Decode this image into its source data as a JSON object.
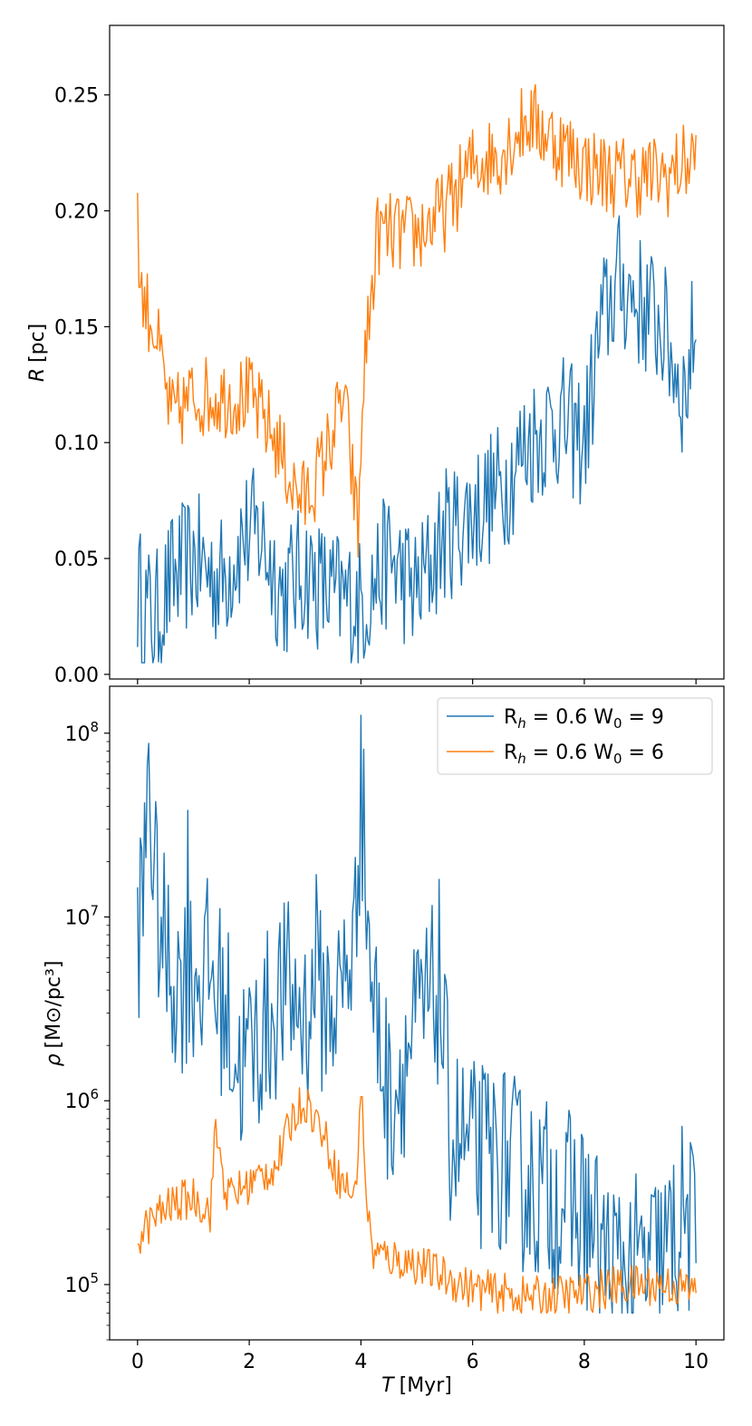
{
  "chart_data": [
    {
      "type": "line",
      "panel": "top",
      "title": "",
      "xlabel": "",
      "ylabel": "R [pc]",
      "ylabel_symbol": "R",
      "ylabel_unit": "[pc]",
      "xlim": [
        -0.5,
        10.5
      ],
      "ylim": [
        -0.002,
        0.28
      ],
      "yscale": "linear",
      "grid": false,
      "xticks": [
        0,
        2,
        4,
        6,
        8,
        10
      ],
      "yticks": [
        0.0,
        0.05,
        0.1,
        0.15,
        0.2,
        0.25
      ],
      "ytick_labels": [
        "0.00",
        "0.05",
        "0.10",
        "0.15",
        "0.20",
        "0.25"
      ],
      "series": [
        {
          "name": "R_h = 0.6 W_0 = 9",
          "color": "#1f77b4",
          "x": [
            0,
            0.3,
            0.6,
            1.0,
            1.5,
            1.9,
            2.2,
            2.6,
            3.0,
            3.4,
            4.0,
            4.5,
            5.0,
            5.5,
            6.0,
            6.5,
            7.0,
            7.5,
            8.0,
            8.3,
            8.6,
            9.0,
            9.4,
            9.8,
            10.0
          ],
          "values": [
            0.036,
            0.022,
            0.04,
            0.05,
            0.04,
            0.06,
            0.06,
            0.035,
            0.045,
            0.035,
            0.03,
            0.05,
            0.035,
            0.06,
            0.07,
            0.08,
            0.1,
            0.11,
            0.1,
            0.15,
            0.17,
            0.16,
            0.15,
            0.12,
            0.155
          ],
          "noise": 0.03
        },
        {
          "name": "R_h = 0.6 W_0 = 6",
          "color": "#ff7f0e",
          "x": [
            0,
            0.05,
            0.3,
            0.6,
            1.0,
            1.5,
            2.0,
            2.5,
            2.8,
            3.0,
            3.3,
            3.7,
            3.95,
            4.05,
            4.3,
            5.0,
            5.5,
            6.0,
            6.5,
            7.0,
            7.5,
            8.0,
            8.5,
            9.0,
            9.5,
            10.0
          ],
          "values": [
            0.204,
            0.165,
            0.15,
            0.11,
            0.12,
            0.12,
            0.12,
            0.1,
            0.08,
            0.075,
            0.09,
            0.12,
            0.06,
            0.13,
            0.19,
            0.19,
            0.2,
            0.22,
            0.225,
            0.24,
            0.23,
            0.22,
            0.215,
            0.215,
            0.215,
            0.224
          ],
          "noise": 0.018
        }
      ]
    },
    {
      "type": "line",
      "panel": "bottom",
      "title": "",
      "xlabel": "T [Myr]",
      "xlabel_symbol": "T",
      "xlabel_unit": "[Myr]",
      "ylabel": "ρ [M⊙/pc³]",
      "ylabel_symbol": "ρ",
      "ylabel_unit": "[M⊙/pc³]",
      "xlim": [
        -0.5,
        10.5
      ],
      "ylim": [
        50000,
        180000000
      ],
      "yscale": "log",
      "grid": false,
      "xticks": [
        0,
        2,
        4,
        6,
        8,
        10
      ],
      "xtick_labels": [
        "0",
        "2",
        "4",
        "6",
        "8",
        "10"
      ],
      "yticks": [
        100000,
        1000000,
        10000000,
        100000000
      ],
      "ytick_base": "10",
      "ytick_exponents": [
        "5",
        "6",
        "7",
        "8"
      ],
      "legend": {
        "location": "upper right",
        "entries": [
          "R_h = 0.6 W_0 = 9",
          "R_h = 0.6 W_0 = 6"
        ],
        "label_prefix": "R",
        "label_sub": "h",
        "label_mid": " = 0.6 W",
        "label_sub2": "0",
        "label_values": [
          " = 9",
          " = 6"
        ]
      },
      "series": [
        {
          "name": "R_h = 0.6 W_0 = 9",
          "color": "#1f77b4",
          "x": [
            0,
            0.1,
            0.2,
            0.3,
            0.5,
            0.7,
            1.0,
            1.3,
            1.6,
            1.8,
            2.0,
            2.3,
            2.6,
            3.0,
            3.3,
            3.6,
            3.9,
            4.0,
            4.2,
            4.5,
            5.0,
            5.4,
            5.6,
            6.0,
            6.5,
            7.0,
            7.5,
            8.0,
            8.3,
            8.5,
            9.0,
            9.5,
            9.8,
            10.0
          ],
          "values": [
            8500000,
            12000000,
            60000000,
            15000000,
            6000000,
            4500000,
            5000000,
            5000000,
            3000000,
            1500000,
            1800000,
            2500000,
            4000000,
            3000000,
            3500000,
            3500000,
            8000000,
            50000000,
            4000000,
            1000000,
            2500000,
            4000000,
            700000,
            500000,
            500000,
            350000,
            300000,
            250000,
            150000,
            120000,
            120000,
            150000,
            250000,
            160000
          ],
          "spikes": [
            [
              0.2,
              88000000
            ],
            [
              4.0,
              125000000
            ],
            [
              0.9,
              38000000
            ],
            [
              3.2,
              17000000
            ],
            [
              5.4,
              16000000
            ]
          ],
          "noise": 0.55
        },
        {
          "name": "R_h = 0.6 W_0 = 6",
          "color": "#ff7f0e",
          "x": [
            0,
            0.3,
            0.6,
            1.0,
            1.3,
            1.4,
            1.6,
            2.0,
            2.5,
            2.8,
            3.0,
            3.3,
            3.6,
            3.9,
            4.0,
            4.1,
            4.2,
            4.5,
            5.0,
            5.5,
            6.0,
            6.5,
            7.0,
            7.5,
            8.0,
            8.5,
            9.0,
            9.5,
            10.0
          ],
          "values": [
            180000,
            230000,
            270000,
            300000,
            250000,
            700000,
            300000,
            350000,
            450000,
            850000,
            1000000,
            700000,
            380000,
            300000,
            1200000,
            300000,
            150000,
            140000,
            130000,
            110000,
            95000,
            90000,
            85000,
            87000,
            90000,
            97000,
            100000,
            100000,
            92000
          ],
          "noise": 0.12
        }
      ]
    }
  ]
}
